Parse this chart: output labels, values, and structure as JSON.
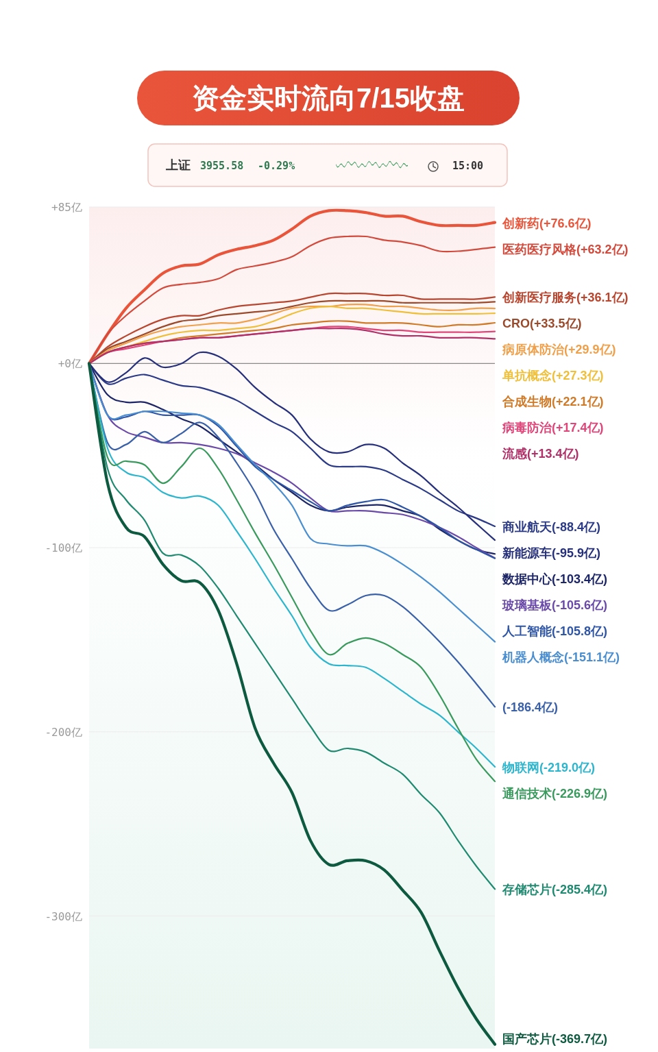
{
  "chart_data": {
    "type": "line",
    "title": "资金实时流向7/15收盘",
    "annotations": [
      "上证",
      "3955.58",
      "-0.29%",
      "15:00"
    ],
    "categories": [
      null,
      null,
      null,
      null,
      null,
      null,
      null,
      null,
      null,
      null,
      null,
      null,
      null,
      null,
      null,
      null,
      null,
      null,
      null,
      null,
      null,
      null,
      null
    ],
    "ylim": [
      -372,
      85
    ],
    "yticks": [
      {
        "value": 85,
        "label": "+85亿"
      },
      {
        "value": 0,
        "label": "+0亿"
      },
      {
        "value": -100,
        "label": "-100亿"
      },
      {
        "value": -200,
        "label": "-200亿"
      },
      {
        "value": -300,
        "label": "-300亿"
      }
    ],
    "tick_labels": "y",
    "grid": "y",
    "legend": false,
    "line_style": "solid",
    "ref_lines": [
      {
        "axis": "y",
        "value": 0,
        "color": "#8a8a8a"
      }
    ],
    "series": [
      {
        "name": "创新药",
        "color": "#e8553a",
        "values": [
          0,
          16,
          30,
          40,
          49,
          53,
          54,
          59,
          62,
          64,
          67,
          73,
          80,
          83,
          83,
          82,
          80,
          80,
          77,
          75,
          75,
          75,
          76.6
        ],
        "value_labels": [
          null,
          null,
          null,
          null,
          null,
          null,
          null,
          null,
          null,
          null,
          null,
          null,
          null,
          null,
          null,
          null,
          null,
          null,
          null,
          null,
          null,
          null,
          "(+76.6亿)"
        ]
      },
      {
        "name": "医药医疗风格",
        "color": "#d24a3c",
        "values": [
          0,
          16,
          26,
          34,
          41,
          43,
          44,
          46,
          51,
          53,
          55,
          58,
          64,
          68,
          69,
          69,
          67,
          66,
          64,
          61,
          61,
          62,
          63.2
        ],
        "value_labels": [
          null,
          null,
          null,
          null,
          null,
          null,
          null,
          null,
          null,
          null,
          null,
          null,
          null,
          null,
          null,
          null,
          null,
          null,
          null,
          null,
          null,
          null,
          "(+63.2亿)"
        ]
      },
      {
        "name": "创新医疗服务",
        "color": "#b8452e",
        "values": [
          0,
          9,
          15,
          20,
          24,
          26,
          26,
          29,
          31,
          32,
          33,
          34,
          36,
          38,
          38,
          38,
          37,
          37,
          35,
          35,
          35,
          35,
          36.1
        ],
        "value_labels": [
          null,
          null,
          null,
          null,
          null,
          null,
          null,
          null,
          null,
          null,
          null,
          null,
          null,
          null,
          null,
          null,
          null,
          null,
          null,
          null,
          null,
          null,
          "(+36.1亿)"
        ]
      },
      {
        "name": "CRO",
        "color": "#9a4a2a",
        "values": [
          0,
          8,
          12,
          16,
          20,
          23,
          24,
          26,
          27,
          28,
          29,
          31,
          33,
          34,
          34,
          34,
          34,
          33,
          33,
          33,
          33,
          33,
          33.5
        ],
        "value_labels": [
          null,
          null,
          null,
          null,
          null,
          null,
          null,
          null,
          null,
          null,
          null,
          null,
          null,
          null,
          null,
          null,
          null,
          null,
          null,
          null,
          null,
          null,
          "(+33.5亿)"
        ]
      },
      {
        "name": "病原体防治",
        "color": "#f0a04a",
        "values": [
          0,
          7,
          11,
          15,
          18,
          20,
          21,
          22,
          22,
          24,
          27,
          30,
          31,
          31,
          32,
          32,
          31,
          31,
          30,
          29,
          29,
          30,
          29.9
        ],
        "value_labels": [
          null,
          null,
          null,
          null,
          null,
          null,
          null,
          null,
          null,
          null,
          null,
          null,
          null,
          null,
          null,
          null,
          null,
          null,
          null,
          null,
          null,
          null,
          "(+29.9亿)"
        ]
      },
      {
        "name": "单抗概念",
        "color": "#efbf3a",
        "values": [
          0,
          6,
          9,
          12,
          15,
          17,
          18,
          18,
          19,
          20,
          23,
          27,
          30,
          31,
          30,
          30,
          29,
          28,
          27,
          27,
          27,
          27,
          27.3
        ],
        "value_labels": [
          null,
          null,
          null,
          null,
          null,
          null,
          null,
          null,
          null,
          null,
          null,
          null,
          null,
          null,
          null,
          null,
          null,
          null,
          null,
          null,
          null,
          null,
          "(+27.3亿)"
        ]
      },
      {
        "name": "合成生物",
        "color": "#d07a28",
        "values": [
          0,
          6,
          9,
          11,
          12,
          14,
          15,
          16,
          17,
          18,
          19,
          21,
          22,
          23,
          23,
          22,
          22,
          22,
          21,
          20,
          21,
          21,
          22.1
        ],
        "value_labels": [
          null,
          null,
          null,
          null,
          null,
          null,
          null,
          null,
          null,
          null,
          null,
          null,
          null,
          null,
          null,
          null,
          null,
          null,
          null,
          null,
          null,
          null,
          "(+22.1亿)"
        ]
      },
      {
        "name": "病毒防治",
        "color": "#e0457a",
        "values": [
          0,
          6,
          8,
          10,
          12,
          13,
          14,
          14,
          15,
          16,
          17,
          18,
          19,
          20,
          20,
          19,
          18,
          18,
          17,
          17,
          17,
          17,
          17.4
        ],
        "value_labels": [
          null,
          null,
          null,
          null,
          null,
          null,
          null,
          null,
          null,
          null,
          null,
          null,
          null,
          null,
          null,
          null,
          null,
          null,
          null,
          null,
          null,
          null,
          "(+17.4亿)"
        ]
      },
      {
        "name": "流感",
        "color": "#b03068",
        "values": [
          0,
          6,
          9,
          11,
          12,
          13,
          14,
          14,
          15,
          16,
          17,
          18,
          19,
          19,
          19,
          18,
          16,
          15,
          15,
          14,
          14,
          14,
          13.4
        ],
        "value_labels": [
          null,
          null,
          null,
          null,
          null,
          null,
          null,
          null,
          null,
          null,
          null,
          null,
          null,
          null,
          null,
          null,
          null,
          null,
          null,
          null,
          null,
          null,
          "(+13.4亿)"
        ]
      },
      {
        "name": "商业航天",
        "color": "#2b3a86",
        "values": [
          0,
          -11,
          -8,
          -6,
          -9,
          -12,
          -13,
          -16,
          -20,
          -26,
          -32,
          -37,
          -46,
          -55,
          -56,
          -56,
          -58,
          -63,
          -68,
          -74,
          -80,
          -84,
          -88.4
        ],
        "value_labels": [
          null,
          null,
          null,
          null,
          null,
          null,
          null,
          null,
          null,
          null,
          null,
          null,
          null,
          null,
          null,
          null,
          null,
          null,
          null,
          null,
          null,
          null,
          "(-88.4亿)"
        ]
      },
      {
        "name": "新能源车",
        "color": "#26307a",
        "values": [
          0,
          -10,
          -5,
          3,
          -2,
          0,
          6,
          4,
          -3,
          -13,
          -21,
          -28,
          -41,
          -48,
          -48,
          -44,
          -46,
          -54,
          -61,
          -70,
          -78,
          -87,
          -95.9
        ],
        "value_labels": [
          null,
          null,
          null,
          null,
          null,
          null,
          null,
          null,
          null,
          null,
          null,
          null,
          null,
          null,
          null,
          null,
          null,
          null,
          null,
          null,
          null,
          null,
          "(-95.9亿)"
        ]
      },
      {
        "name": "数据中心",
        "color": "#1c2566",
        "values": [
          0,
          -17,
          -21,
          -21,
          -25,
          -30,
          -34,
          -41,
          -48,
          -55,
          -63,
          -70,
          -77,
          -80,
          -78,
          -77,
          -77,
          -80,
          -83,
          -90,
          -96,
          -101,
          -103.4
        ],
        "value_labels": [
          null,
          null,
          null,
          null,
          null,
          null,
          null,
          null,
          null,
          null,
          null,
          null,
          null,
          null,
          null,
          null,
          null,
          null,
          null,
          null,
          null,
          null,
          "(-103.4亿)"
        ]
      },
      {
        "name": "玻璃基板",
        "color": "#6a4aa8",
        "values": [
          0,
          -28,
          -37,
          -40,
          -43,
          -43,
          -44,
          -46,
          -49,
          -54,
          -59,
          -65,
          -73,
          -80,
          -80,
          -80,
          -81,
          -82,
          -85,
          -89,
          -94,
          -100,
          -105.6
        ],
        "value_labels": [
          null,
          null,
          null,
          null,
          null,
          null,
          null,
          null,
          null,
          null,
          null,
          null,
          null,
          null,
          null,
          null,
          null,
          null,
          null,
          null,
          null,
          null,
          "(-105.6亿)"
        ]
      },
      {
        "name": "人工智能",
        "color": "#2f55a5",
        "values": [
          0,
          -28,
          -29,
          -26,
          -28,
          -28,
          -28,
          -34,
          -45,
          -56,
          -63,
          -69,
          -75,
          -80,
          -77,
          -75,
          -74,
          -78,
          -83,
          -89,
          -96,
          -101,
          -105.8
        ],
        "value_labels": [
          null,
          null,
          null,
          null,
          null,
          null,
          null,
          null,
          null,
          null,
          null,
          null,
          null,
          null,
          null,
          null,
          null,
          null,
          null,
          null,
          null,
          null,
          "(-105.8亿)"
        ]
      },
      {
        "name": "机器人概念",
        "color": "#4a8ed0",
        "values": [
          0,
          -28,
          -28,
          -26,
          -26,
          -27,
          -28,
          -33,
          -44,
          -55,
          -65,
          -77,
          -95,
          -98,
          -99,
          -99,
          -103,
          -109,
          -116,
          -124,
          -133,
          -142,
          -151.1
        ],
        "value_labels": [
          null,
          null,
          null,
          null,
          null,
          null,
          null,
          null,
          null,
          null,
          null,
          null,
          null,
          null,
          null,
          null,
          null,
          null,
          null,
          null,
          null,
          null,
          "(-151.1亿)"
        ]
      },
      {
        "color": "#3a60a8",
        "values": [
          0,
          -43,
          -44,
          -37,
          -43,
          -38,
          -32,
          -40,
          -54,
          -70,
          -90,
          -106,
          -122,
          -134,
          -131,
          -126,
          -126,
          -132,
          -141,
          -151,
          -162,
          -174,
          -186.4
        ],
        "value_labels": [
          null,
          null,
          null,
          null,
          null,
          null,
          null,
          null,
          null,
          null,
          null,
          null,
          null,
          null,
          null,
          null,
          null,
          null,
          null,
          null,
          null,
          null,
          "(-186.4亿)"
        ]
      },
      {
        "name": "物联网",
        "color": "#2cb5cc",
        "values": [
          0,
          -46,
          -59,
          -62,
          -70,
          -73,
          -72,
          -77,
          -91,
          -106,
          -122,
          -137,
          -154,
          -163,
          -164,
          -165,
          -171,
          -178,
          -185,
          -191,
          -200,
          -209,
          -219
        ],
        "value_labels": [
          null,
          null,
          null,
          null,
          null,
          null,
          null,
          null,
          null,
          null,
          null,
          null,
          null,
          null,
          null,
          null,
          null,
          null,
          null,
          null,
          null,
          null,
          "(-219.0亿)"
        ]
      },
      {
        "name": "通信技术",
        "color": "#3a9a5e",
        "values": [
          0,
          -51,
          -53,
          -55,
          -65,
          -56,
          -46,
          -57,
          -74,
          -92,
          -109,
          -127,
          -145,
          -158,
          -152,
          -149,
          -152,
          -158,
          -165,
          -180,
          -198,
          -215,
          -226.9
        ],
        "value_labels": [
          null,
          null,
          null,
          null,
          null,
          null,
          null,
          null,
          null,
          null,
          null,
          null,
          null,
          null,
          null,
          null,
          null,
          null,
          null,
          null,
          null,
          null,
          "(-226.9亿)"
        ]
      },
      {
        "name": "存储芯片",
        "color": "#1f8a70",
        "values": [
          0,
          -57,
          -74,
          -85,
          -103,
          -104,
          -110,
          -122,
          -137,
          -152,
          -167,
          -182,
          -197,
          -210,
          -209,
          -211,
          -217,
          -223,
          -234,
          -244,
          -259,
          -273,
          -285.4
        ],
        "value_labels": [
          null,
          null,
          null,
          null,
          null,
          null,
          null,
          null,
          null,
          null,
          null,
          null,
          null,
          null,
          null,
          null,
          null,
          null,
          null,
          null,
          null,
          null,
          "(-285.4亿)"
        ]
      },
      {
        "name": "国产芯片",
        "color": "#0e5a40",
        "values": [
          0,
          -65,
          -89,
          -94,
          -109,
          -118,
          -119,
          -134,
          -163,
          -198,
          -217,
          -233,
          -259,
          -272,
          -270,
          -270,
          -275,
          -286,
          -298,
          -319,
          -339,
          -356,
          -369.7
        ],
        "value_labels": [
          null,
          null,
          null,
          null,
          null,
          null,
          null,
          null,
          null,
          null,
          null,
          null,
          null,
          null,
          null,
          null,
          null,
          null,
          null,
          null,
          null,
          null,
          "(-369.7亿)"
        ]
      }
    ]
  }
}
